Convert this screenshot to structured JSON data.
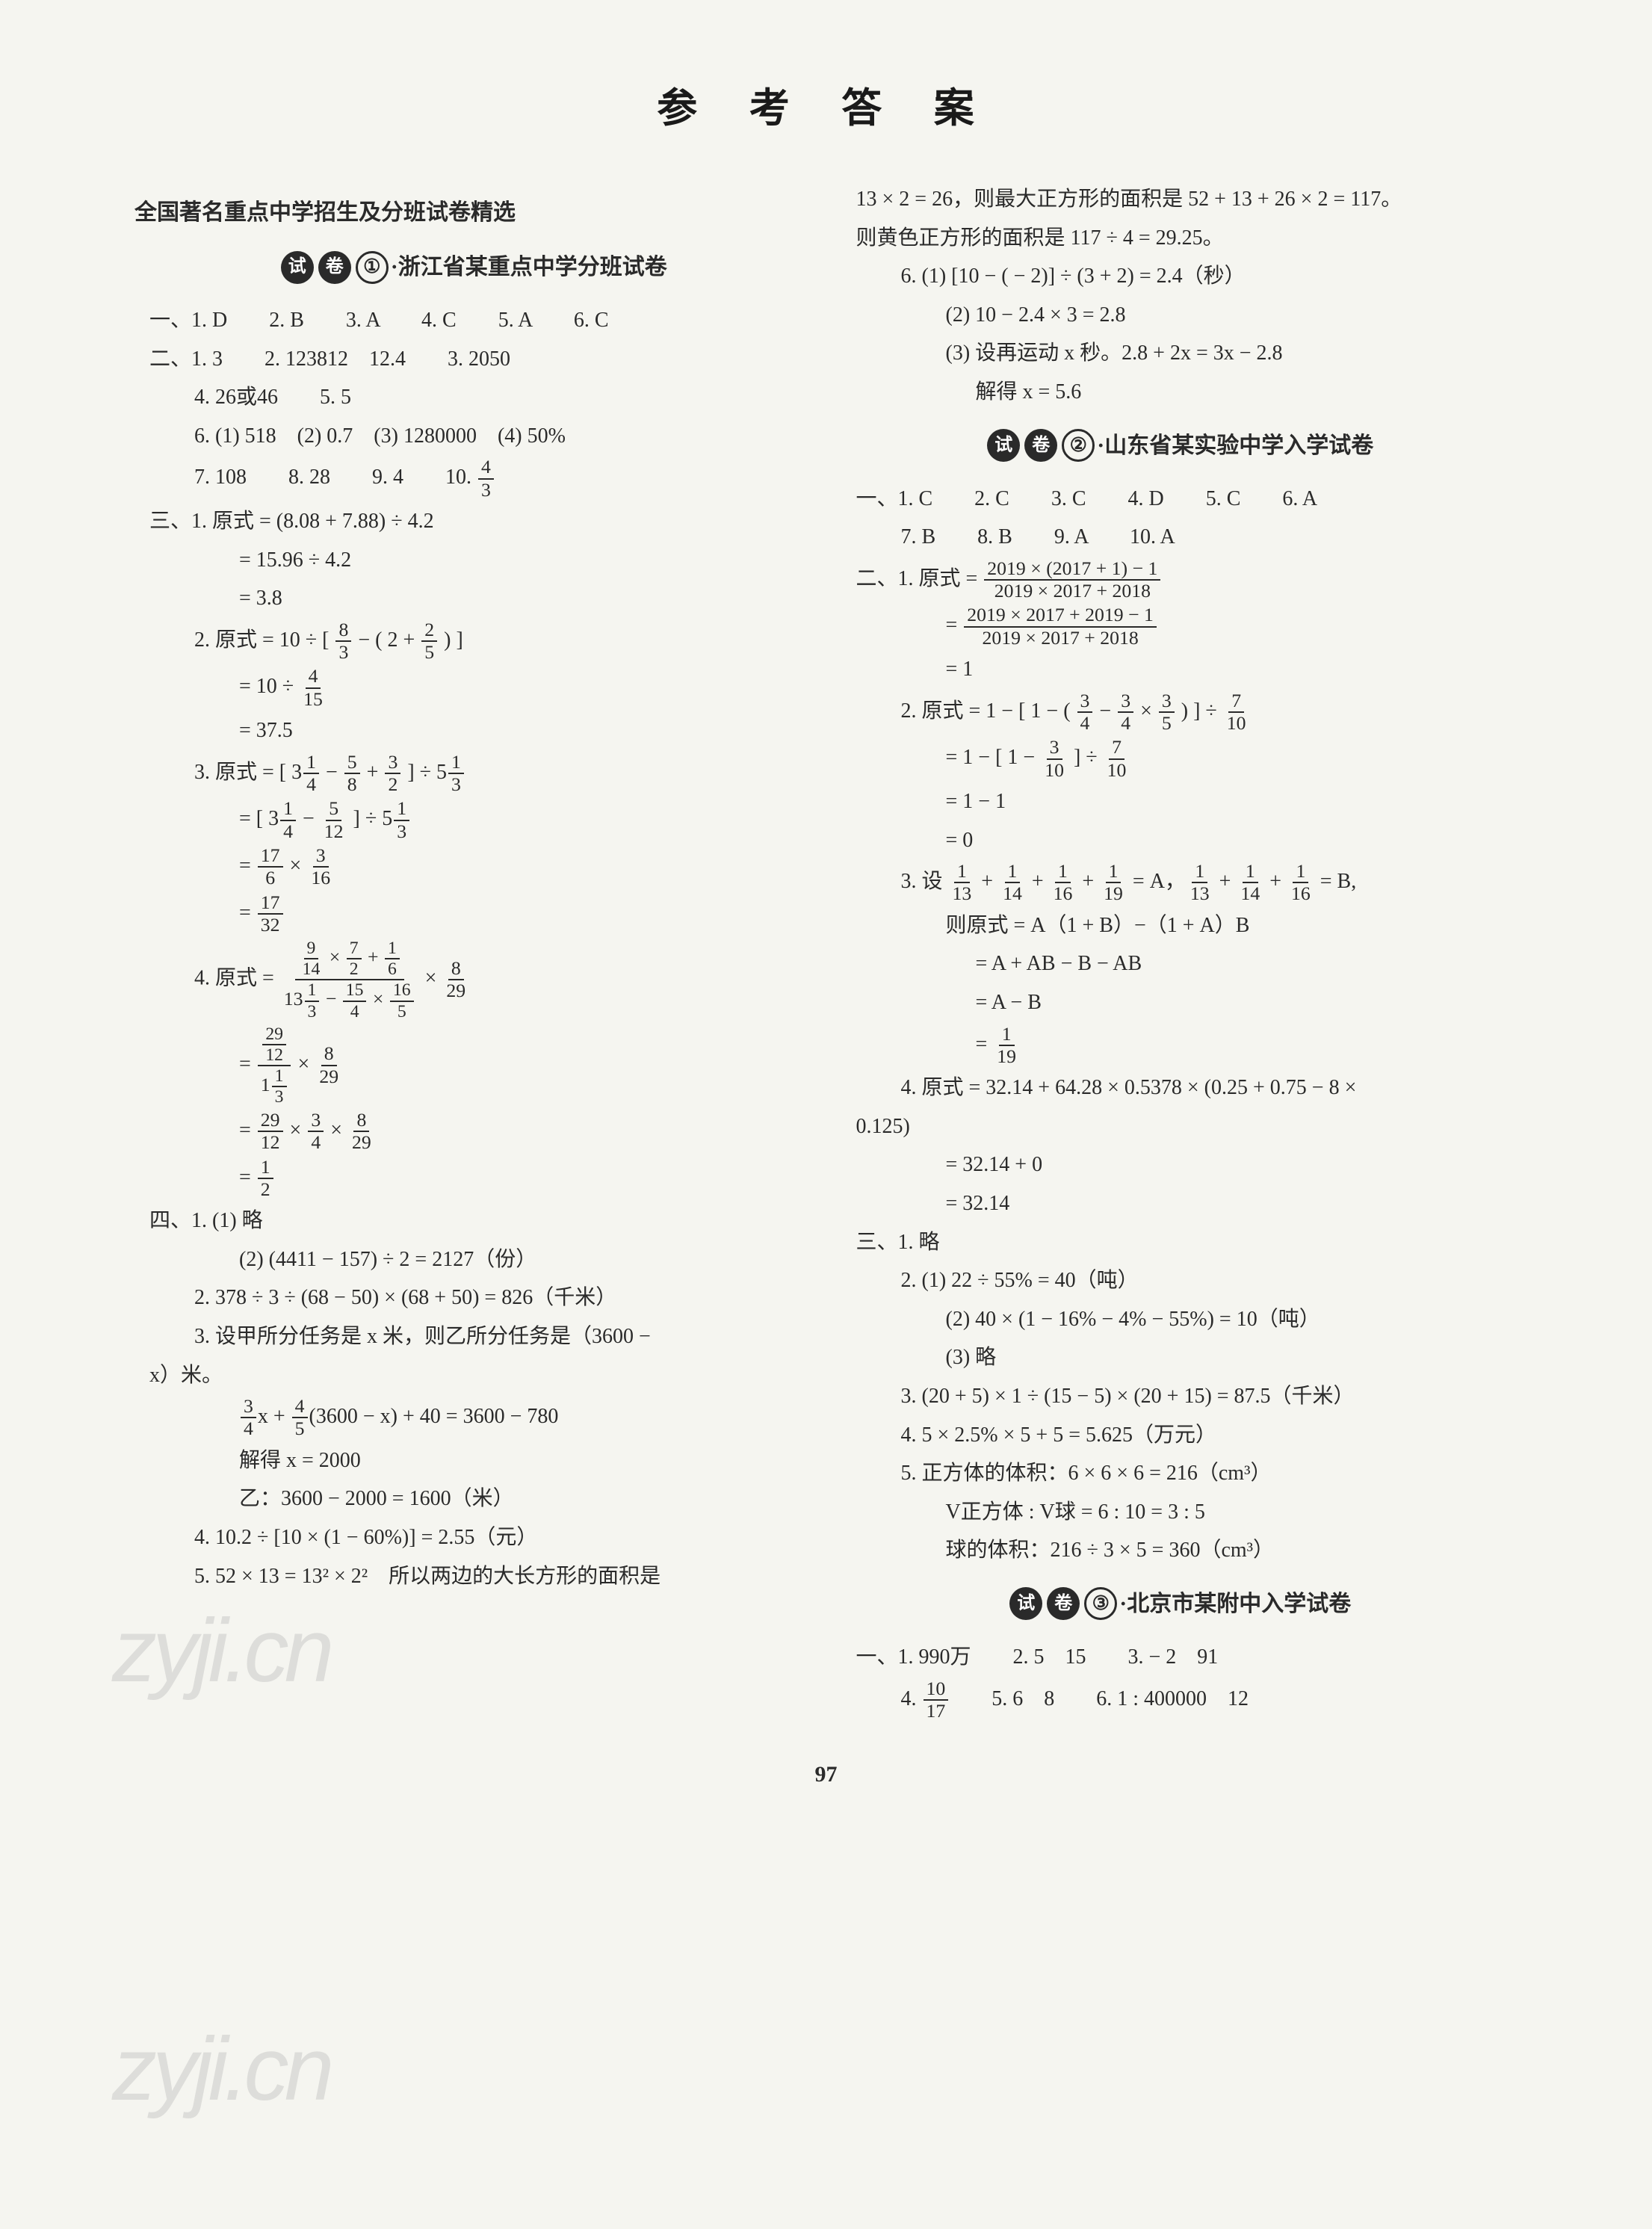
{
  "page_title": "参 考 答 案",
  "page_number": "97",
  "watermark_text": "zyji.cn",
  "left": {
    "section_header": "全国著名重点中学招生及分班试卷精选",
    "paper1": {
      "badge_shi": "试",
      "badge_juan": "卷",
      "badge_num": "①",
      "title": "·浙江省某重点中学分班试卷"
    },
    "p1_sec1_line1": "一、1. D　　2. B　　3. A　　4. C　　5. A　　6. C",
    "p1_sec2_line1": "二、1. 3　　2. 123812　12.4　　3. 2050",
    "p1_sec2_line2": "4. 26或46　　5. 5",
    "p1_sec2_line3": "6. (1) 518　(2) 0.7　(3) 1280000　(4) 50%",
    "p1_sec2_line4_a": "7. 108　　8. 28　　9. 4　　10. ",
    "p1_sec2_frac10_num": "4",
    "p1_sec2_frac10_den": "3",
    "p1_sec3_l1": "三、1. 原式 = (8.08 + 7.88) ÷ 4.2",
    "p1_sec3_l2": "= 15.96 ÷ 4.2",
    "p1_sec3_l3": "= 3.8",
    "p1_q2_l1a": "2. 原式 = 10 ÷ [ ",
    "p1_q2_f1n": "8",
    "p1_q2_f1d": "3",
    "p1_q2_l1b": " − ( 2 + ",
    "p1_q2_f2n": "2",
    "p1_q2_f2d": "5",
    "p1_q2_l1c": " ) ]",
    "p1_q2_l2a": "= 10 ÷ ",
    "p1_q2_f3n": "4",
    "p1_q2_f3d": "15",
    "p1_q2_l3": "= 37.5",
    "p1_q3_l1a": "3. 原式 = [ 3",
    "p1_q3_f1n": "1",
    "p1_q3_f1d": "4",
    "p1_q3_l1b": " − ",
    "p1_q3_f2n": "5",
    "p1_q3_f2d": "8",
    "p1_q3_l1c": " + ",
    "p1_q3_f3n": "3",
    "p1_q3_f3d": "2",
    "p1_q3_l1d": " ] ÷ 5",
    "p1_q3_f4n": "1",
    "p1_q3_f4d": "3",
    "p1_q3_l2a": "= [ 3",
    "p1_q3_f5n": "1",
    "p1_q3_f5d": "4",
    "p1_q3_l2b": " − ",
    "p1_q3_f6n": "5",
    "p1_q3_f6d": "12",
    "p1_q3_l2c": " ] ÷ 5",
    "p1_q3_f7n": "1",
    "p1_q3_f7d": "3",
    "p1_q3_l3a": "= ",
    "p1_q3_f8n": "17",
    "p1_q3_f8d": "6",
    "p1_q3_l3b": " × ",
    "p1_q3_f9n": "3",
    "p1_q3_f9d": "16",
    "p1_q3_l4a": "= ",
    "p1_q3_f10n": "17",
    "p1_q3_f10d": "32",
    "p1_q4_l1": "4. 原式 = ",
    "p1_q4_bigfrac1_top_a": "",
    "p1_q4_bf1_f1n": "9",
    "p1_q4_bf1_f1d": "14",
    "p1_q4_bf1_mid1": " × ",
    "p1_q4_bf1_f2n": "7",
    "p1_q4_bf1_f2d": "2",
    "p1_q4_bf1_mid2": " + ",
    "p1_q4_bf1_f3n": "1",
    "p1_q4_bf1_f3d": "6",
    "p1_q4_bf1_bot_a": "13",
    "p1_q4_bf1_f4n": "1",
    "p1_q4_bf1_f4d": "3",
    "p1_q4_bf1_bot_b": " − ",
    "p1_q4_bf1_f5n": "15",
    "p1_q4_bf1_f5d": "4",
    "p1_q4_bf1_bot_c": " × ",
    "p1_q4_bf1_f6n": "16",
    "p1_q4_bf1_f6d": "5",
    "p1_q4_l1_tail": " × ",
    "p1_q4_f_end1n": "8",
    "p1_q4_f_end1d": "29",
    "p1_q4_l2a": "= ",
    "p1_q4_bf2_tn": "29",
    "p1_q4_bf2_td": "12",
    "p1_q4_bf2_bn": "1",
    "p1_q4_bf2_bd": "3",
    "p1_q4_bf2_bpre": "1",
    "p1_q4_l2b": " × ",
    "p1_q4_f_end2n": "8",
    "p1_q4_f_end2d": "29",
    "p1_q4_l3a": "= ",
    "p1_q4_f_l3_1n": "29",
    "p1_q4_f_l3_1d": "12",
    "p1_q4_l3b": " × ",
    "p1_q4_f_l3_2n": "3",
    "p1_q4_f_l3_2d": "4",
    "p1_q4_l3c": " × ",
    "p1_q4_f_l3_3n": "8",
    "p1_q4_f_l3_3d": "29",
    "p1_q4_l4a": "= ",
    "p1_q4_f_l4n": "1",
    "p1_q4_f_l4d": "2",
    "p1_sec4_l1": "四、1. (1) 略",
    "p1_sec4_l2": "(2) (4411 − 157) ÷ 2 = 2127（份）",
    "p1_sec4_l3": "2. 378 ÷ 3 ÷ (68 − 50) × (68 + 50) = 826（千米）",
    "p1_sec4_l4": "3. 设甲所分任务是 x 米，则乙所分任务是（3600 −",
    "p1_sec4_l4b": "x）米。",
    "p1_sec4_l5a": "",
    "p1_sec4_f1n": "3",
    "p1_sec4_f1d": "4",
    "p1_sec4_l5b": "x + ",
    "p1_sec4_f2n": "4",
    "p1_sec4_f2d": "5",
    "p1_sec4_l5c": "(3600 − x) + 40 = 3600 − 780",
    "p1_sec4_l6": "解得 x = 2000",
    "p1_sec4_l7": "乙：3600 − 2000 = 1600（米）",
    "p1_sec4_l8": "4. 10.2 ÷ [10 × (1 − 60%)] = 2.55（元）",
    "p1_sec4_l9": "5. 52 × 13 = 13² × 2²　所以两边的大长方形的面积是"
  },
  "right": {
    "cont_l1": "13 × 2 = 26，则最大正方形的面积是 52 + 13 + 26 × 2 = 117。",
    "cont_l2": "则黄色正方形的面积是 117 ÷ 4 = 29.25。",
    "cont_l3": "6. (1) [10 − ( − 2)] ÷ (3 + 2) = 2.4（秒）",
    "cont_l4": "(2) 10 − 2.4 × 3 = 2.8",
    "cont_l5": "(3) 设再运动 x 秒。2.8 + 2x = 3x − 2.8",
    "cont_l6": "解得 x = 5.6",
    "paper2": {
      "badge_shi": "试",
      "badge_juan": "卷",
      "badge_num": "②",
      "title": "·山东省某实验中学入学试卷"
    },
    "p2_s1_l1": "一、1. C　　2. C　　3. C　　4. D　　5. C　　6. A",
    "p2_s1_l2": "7. B　　8. B　　9. A　　10. A",
    "p2_s2_l1a": "二、1. 原式 = ",
    "p2_s2_bf1_tn": "2019 × (2017 + 1) − 1",
    "p2_s2_bf1_bn": "2019 × 2017 + 2018",
    "p2_s2_l2a": "= ",
    "p2_s2_bf2_tn": "2019 × 2017 + 2019 − 1",
    "p2_s2_bf2_bn": "2019 × 2017 + 2018",
    "p2_s2_l3": "= 1",
    "p2_q2_l1a": "2. 原式 = 1 − [ 1 − ( ",
    "p2_q2_f1n": "3",
    "p2_q2_f1d": "4",
    "p2_q2_l1b": " − ",
    "p2_q2_f2n": "3",
    "p2_q2_f2d": "4",
    "p2_q2_l1c": " × ",
    "p2_q2_f3n": "3",
    "p2_q2_f3d": "5",
    "p2_q2_l1d": " ) ] ÷ ",
    "p2_q2_f4n": "7",
    "p2_q2_f4d": "10",
    "p2_q2_l2a": "= 1 − [ 1 − ",
    "p2_q2_f5n": "3",
    "p2_q2_f5d": "10",
    "p2_q2_l2b": " ] ÷ ",
    "p2_q2_f6n": "7",
    "p2_q2_f6d": "10",
    "p2_q2_l3": "= 1 − 1",
    "p2_q2_l4": "= 0",
    "p2_q3_l1a": "3. 设 ",
    "p2_q3_f1n": "1",
    "p2_q3_f1d": "13",
    "p2_q3_l1b": " + ",
    "p2_q3_f2n": "1",
    "p2_q3_f2d": "14",
    "p2_q3_l1c": " + ",
    "p2_q3_f3n": "1",
    "p2_q3_f3d": "16",
    "p2_q3_l1d": " + ",
    "p2_q3_f4n": "1",
    "p2_q3_f4d": "19",
    "p2_q3_l1e": " = A，",
    "p2_q3_f5n": "1",
    "p2_q3_f5d": "13",
    "p2_q3_l1f": " + ",
    "p2_q3_f6n": "1",
    "p2_q3_f6d": "14",
    "p2_q3_l1g": " + ",
    "p2_q3_f7n": "1",
    "p2_q3_f7d": "16",
    "p2_q3_l1h": " = B,",
    "p2_q3_l2": "则原式 = A（1 + B）−（1 + A）B",
    "p2_q3_l3": "= A + AB − B − AB",
    "p2_q3_l4": "= A − B",
    "p2_q3_l5a": "= ",
    "p2_q3_f8n": "1",
    "p2_q3_f8d": "19",
    "p2_q4_l1": "4. 原式 = 32.14 + 64.28 × 0.5378 × (0.25 + 0.75 − 8 ×",
    "p2_q4_l1b": "0.125)",
    "p2_q4_l2": "= 32.14 + 0",
    "p2_q4_l3": "= 32.14",
    "p2_s3_l1": "三、1. 略",
    "p2_s3_l2": "2. (1) 22 ÷ 55% = 40（吨）",
    "p2_s3_l3": "(2) 40 × (1 − 16% − 4% − 55%) = 10（吨）",
    "p2_s3_l4": "(3) 略",
    "p2_s3_l5": "3. (20 + 5) × 1 ÷ (15 − 5) × (20 + 15) = 87.5（千米）",
    "p2_s3_l6": "4. 5 × 2.5% × 5 + 5 = 5.625（万元）",
    "p2_s3_l7": "5. 正方体的体积：6 × 6 × 6 = 216（cm³）",
    "p2_s3_l8": "V正方体 : V球 = 6 : 10 = 3 : 5",
    "p2_s3_l9": "球的体积：216 ÷ 3 × 5 = 360（cm³）",
    "paper3": {
      "badge_shi": "试",
      "badge_juan": "卷",
      "badge_num": "③",
      "title": "·北京市某附中入学试卷"
    },
    "p3_l1": "一、1. 990万　　2. 5　15　　3. − 2　91",
    "p3_l2a": "4. ",
    "p3_f1n": "10",
    "p3_f1d": "17",
    "p3_l2b": "　　5. 6　8　　6. 1 : 400000　12"
  }
}
